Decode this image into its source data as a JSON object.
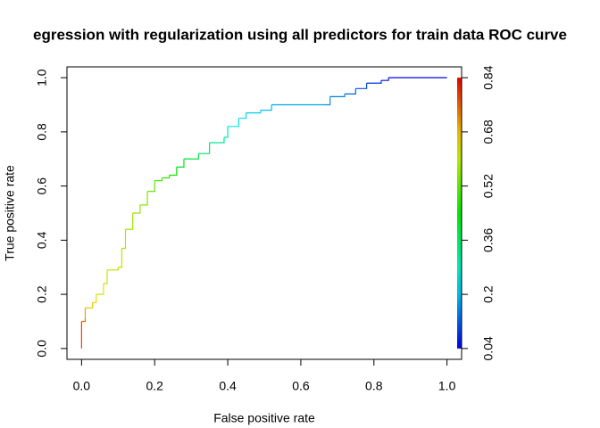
{
  "chart_data": {
    "type": "line",
    "title": "egression with regularization using all predictors for train data ROC curve",
    "x_label": "False positive rate",
    "y_label": "True positive rate",
    "x": [
      0,
      0,
      0.01,
      0.01,
      0.03,
      0.04,
      0.06,
      0.07,
      0.1,
      0.11,
      0.12,
      0.14,
      0.16,
      0.18,
      0.2,
      0.22,
      0.24,
      0.26,
      0.28,
      0.32,
      0.35,
      0.39,
      0.4,
      0.43,
      0.45,
      0.49,
      0.52,
      0.66,
      0.68,
      0.72,
      0.75,
      0.78,
      0.82,
      0.84,
      1
    ],
    "series": [
      {
        "name": "ROC",
        "values": [
          0,
          0.1,
          0.11,
          0.15,
          0.17,
          0.2,
          0.24,
          0.29,
          0.3,
          0.37,
          0.44,
          0.5,
          0.53,
          0.58,
          0.62,
          0.63,
          0.64,
          0.67,
          0.7,
          0.72,
          0.76,
          0.78,
          0.82,
          0.85,
          0.87,
          0.88,
          0.9,
          0.9,
          0.93,
          0.94,
          0.96,
          0.98,
          0.99,
          1,
          1
        ],
        "cutoffs": [
          0.84,
          0.78,
          0.74,
          0.7,
          0.67,
          0.65,
          0.63,
          0.62,
          0.61,
          0.6,
          0.59,
          0.58,
          0.57,
          0.55,
          0.52,
          0.5,
          0.48,
          0.45,
          0.42,
          0.38,
          0.34,
          0.31,
          0.27,
          0.25,
          0.23,
          0.22,
          0.21,
          0.19,
          0.17,
          0.15,
          0.13,
          0.11,
          0.08,
          0.06,
          0.04
        ]
      }
    ],
    "xlim": [
      -0.04,
      1.04
    ],
    "ylim": [
      -0.04,
      1.04
    ],
    "xticks": [
      {
        "value": 0,
        "label": "0.0"
      },
      0.2,
      0.4,
      0.6,
      0.8,
      {
        "value": 1,
        "label": "1.0"
      }
    ],
    "yticks": [
      {
        "value": 0,
        "label": "0.0"
      },
      0.2,
      0.4,
      0.6,
      0.8,
      {
        "value": 1,
        "label": "1.0"
      }
    ],
    "clim": [
      0.04,
      0.84
    ],
    "cticks": [
      0.04,
      0.2,
      0.36,
      0.52,
      0.68,
      0.84
    ]
  }
}
